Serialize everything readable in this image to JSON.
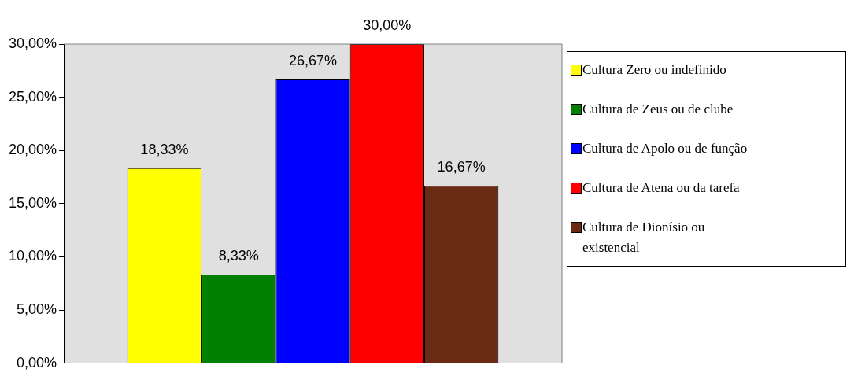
{
  "chart_data": {
    "type": "bar",
    "categories": [
      null
    ],
    "ylim": [
      0,
      30
    ],
    "yticks": [
      {
        "value": 0,
        "label": "0,00%"
      },
      {
        "value": 5,
        "label": "5,00%"
      },
      {
        "value": 10,
        "label": "10,00%"
      },
      {
        "value": 15,
        "label": "15,00%"
      },
      {
        "value": 20,
        "label": "20,00%"
      },
      {
        "value": 25,
        "label": "25,00%"
      },
      {
        "value": 30,
        "label": "30,00%"
      }
    ],
    "grid": false,
    "legend": "right",
    "series": [
      {
        "name": "Cultura Zero ou indefinido",
        "color": "#ffff00",
        "values": [
          18.33
        ],
        "value_labels": [
          "18,33%"
        ]
      },
      {
        "name": "Cultura de Zeus ou de clube",
        "color": "#008000",
        "values": [
          8.33
        ],
        "value_labels": [
          "8,33%"
        ]
      },
      {
        "name": "Cultura de Apolo ou de função",
        "color": "#0000ff",
        "values": [
          26.67
        ],
        "value_labels": [
          "26,67%"
        ]
      },
      {
        "name": "Cultura de Atena ou da tarefa",
        "color": "#ff0000",
        "values": [
          30
        ],
        "value_labels": [
          "30,00%"
        ]
      },
      {
        "name": "Cultura de Dionísio ou existencial",
        "color": "#6b2a14",
        "values": [
          16.67
        ],
        "value_labels": [
          "16,67%"
        ]
      }
    ]
  }
}
